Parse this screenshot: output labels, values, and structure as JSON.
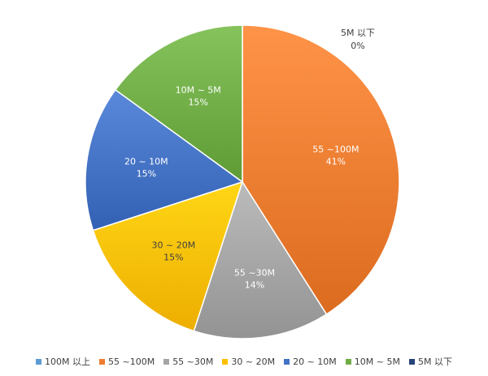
{
  "chart_data": {
    "type": "pie",
    "title": "",
    "legend_position": "bottom",
    "slices": [
      {
        "label": "100M 以上",
        "value": 0,
        "pct_label": "",
        "color": "#5b9bd5"
      },
      {
        "label": "55 ~100M",
        "value": 41,
        "pct_label": "41%",
        "color": "#ed7d31"
      },
      {
        "label": "55 ~30M",
        "value": 14,
        "pct_label": "14%",
        "color": "#a5a5a5"
      },
      {
        "label": "30 ~ 20M",
        "value": 15,
        "pct_label": "15%",
        "color": "#ffc000"
      },
      {
        "label": "20 ~ 10M",
        "value": 15,
        "pct_label": "15%",
        "color": "#4472c4"
      },
      {
        "label": "10M ~ 5M",
        "value": 15,
        "pct_label": "15%",
        "color": "#70ad47"
      },
      {
        "label": "5M 以下",
        "value": 0,
        "pct_label": "0%",
        "color": "#264478"
      }
    ],
    "data_labels": [
      {
        "name": "55  ~100M",
        "pct": "41%"
      },
      {
        "name": "55 ~30M",
        "pct": "14%"
      },
      {
        "name": "30 ~ 20M",
        "pct": "15%"
      },
      {
        "name": "20 ~ 10M",
        "pct": "15%"
      },
      {
        "name": "10M ~ 5M",
        "pct": "15%"
      },
      {
        "name": "5M 以下",
        "pct": "0%"
      }
    ]
  }
}
